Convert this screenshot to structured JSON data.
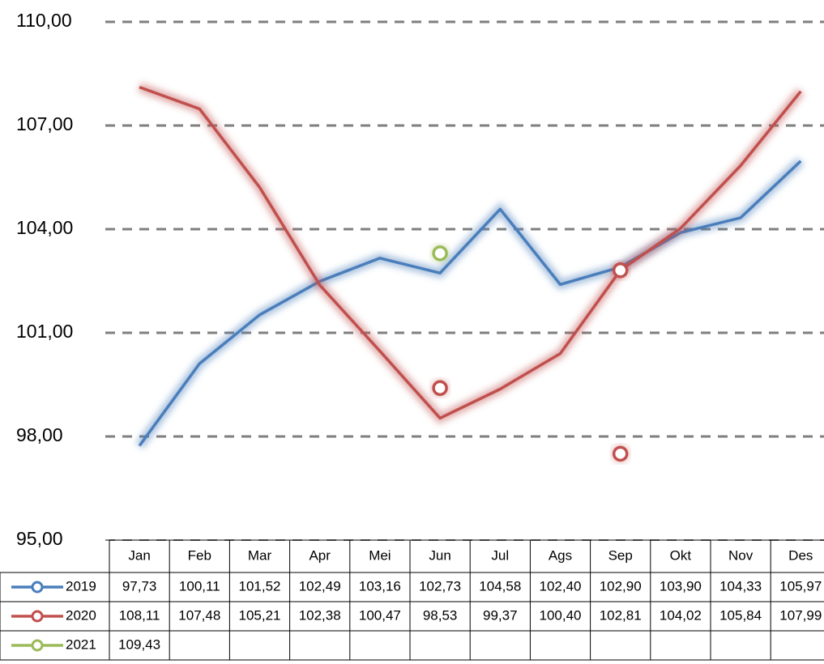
{
  "chart_data": {
    "type": "line",
    "categories": [
      "Jan",
      "Feb",
      "Mar",
      "Apr",
      "Mei",
      "Jun",
      "Jul",
      "Ags",
      "Sep",
      "Okt",
      "Nov",
      "Des"
    ],
    "ylim": [
      95,
      110
    ],
    "yticks": [
      {
        "value": 95,
        "label": "95,00"
      },
      {
        "value": 98,
        "label": "98,00"
      },
      {
        "value": 101,
        "label": "101,00"
      },
      {
        "value": 104,
        "label": "104,00"
      },
      {
        "value": 107,
        "label": "107,00"
      },
      {
        "value": 110,
        "label": "110,00"
      }
    ],
    "grid": true,
    "series": [
      {
        "name": "2019",
        "color": "#4a7ebb",
        "values": [
          97.73,
          100.11,
          101.52,
          102.49,
          103.16,
          102.73,
          104.58,
          102.4,
          102.9,
          103.9,
          104.33,
          105.97
        ],
        "value_labels": [
          "97,73",
          "100,11",
          "101,52",
          "102,49",
          "103,16",
          "102,73",
          "104,58",
          "102,40",
          "102,90",
          "103,90",
          "104,33",
          "105,97"
        ],
        "marker_points": []
      },
      {
        "name": "2020",
        "color": "#c0504d",
        "values": [
          108.11,
          107.48,
          105.21,
          102.38,
          100.47,
          98.53,
          99.37,
          100.4,
          102.81,
          104.02,
          105.84,
          107.99
        ],
        "value_labels": [
          "108,11",
          "107,48",
          "105,21",
          "102,38",
          "100,47",
          "98,53",
          "99,37",
          "100,40",
          "102,81",
          "104,02",
          "105,84",
          "107,99"
        ],
        "marker_points": [
          {
            "x": "Jun",
            "y": 99.4
          },
          {
            "x": "Sep",
            "y": 97.5
          },
          {
            "x": "Sep",
            "y": 102.81
          }
        ]
      },
      {
        "name": "2021",
        "color": "#9bbb59",
        "values": [
          109.43,
          null,
          null,
          null,
          null,
          null,
          null,
          null,
          null,
          null,
          null,
          null
        ],
        "value_labels": [
          "109,43",
          null,
          null,
          null,
          null,
          null,
          null,
          null,
          null,
          null,
          null,
          null
        ],
        "marker_points": [
          {
            "x": "Jun",
            "y": 103.3
          }
        ]
      }
    ]
  }
}
